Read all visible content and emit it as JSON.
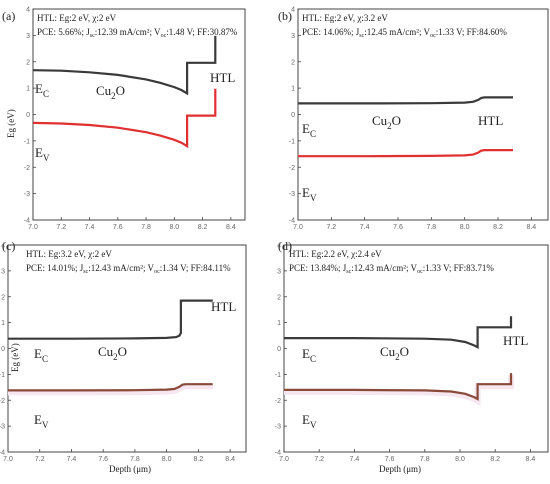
{
  "colors": {
    "ec_line": "#3a3a3a",
    "ev_line": "#e03030",
    "ev_line_alt": "#8a4a3a",
    "frame": "#444444",
    "ev_fill": "#f6e6ef"
  },
  "x_axis_title": "Depth (μm)",
  "chart_data": [
    {
      "type": "line",
      "panel_label": "(a)",
      "info_line1": "HTL: Eg:2 eV, χ:2 eV",
      "info_line2": "PCE: 5.66%; J",
      "info_line2_jsc": "sc",
      "info_line2_rest": ":12.39 mA/cm²; V",
      "info_line2_voc": "oc",
      "info_line2_tail": ":1.48 V; FF:30.87%",
      "ylabel": "Eg (eV)",
      "xlim": [
        7.0,
        8.5
      ],
      "ylim": [
        -4,
        4
      ],
      "x_ticks": [
        "7.0",
        "7.2",
        "7.4",
        "7.6",
        "7.8",
        "8.0",
        "8.2",
        "8.4"
      ],
      "y_ticks": [
        "-4",
        "-3",
        "-2",
        "-1",
        "0",
        "1",
        "2",
        "3",
        "4"
      ],
      "ec_label": "E",
      "ec_sub": "C",
      "ev_label": "E",
      "ev_sub": "V",
      "cu2o_label": "Cu",
      "cu2o_sub": "2",
      "cu2o_tail": "O",
      "htl_label": "HTL",
      "ev_style": "red",
      "series": [
        {
          "band": "Ec",
          "x": [
            7.0,
            7.2,
            7.4,
            7.6,
            7.8,
            7.9,
            8.0,
            8.05,
            8.09,
            8.09,
            8.29,
            8.29
          ],
          "y": [
            1.68,
            1.66,
            1.6,
            1.5,
            1.33,
            1.2,
            1.04,
            0.93,
            0.8,
            1.96,
            1.96,
            2.98
          ]
        },
        {
          "band": "Ev",
          "x": [
            7.0,
            7.2,
            7.4,
            7.6,
            7.8,
            7.9,
            8.0,
            8.05,
            8.09,
            8.09,
            8.29,
            8.29
          ],
          "y": [
            -0.32,
            -0.34,
            -0.4,
            -0.5,
            -0.67,
            -0.8,
            -0.96,
            -1.07,
            -1.2,
            -0.04,
            -0.04,
            0.98
          ]
        }
      ]
    },
    {
      "type": "line",
      "panel_label": "(b)",
      "info_line1": "HTL: Eg:2 eV, χ:3.2 eV",
      "info_line2": "PCE: 14.06%; J",
      "info_line2_jsc": "sc",
      "info_line2_rest": ":12.45 mA/cm²; V",
      "info_line2_voc": "oc",
      "info_line2_tail": ":1.33 V; FF:84.60%",
      "ylabel": "",
      "xlim": [
        7.0,
        8.5
      ],
      "ylim": [
        -4,
        4
      ],
      "x_ticks": [
        "7.0",
        "7.2",
        "7.4",
        "7.6",
        "7.8",
        "8.0",
        "8.2",
        "8.4"
      ],
      "y_ticks": [
        "-4",
        "-3",
        "-2",
        "-1",
        "0",
        "1",
        "2",
        "3",
        "4"
      ],
      "ec_label": "E",
      "ec_sub": "C",
      "ev_label": "E",
      "ev_sub": "V",
      "cu2o_label": "Cu",
      "cu2o_sub": "2",
      "cu2o_tail": "O",
      "htl_label": "HTL",
      "ev_style": "red",
      "series": [
        {
          "band": "Ec",
          "x": [
            7.0,
            7.4,
            7.8,
            8.0,
            8.05,
            8.08,
            8.1,
            8.12,
            8.29
          ],
          "y": [
            0.42,
            0.42,
            0.43,
            0.45,
            0.48,
            0.55,
            0.63,
            0.65,
            0.65
          ]
        },
        {
          "band": "Ev",
          "x": [
            7.0,
            7.4,
            7.8,
            8.0,
            8.05,
            8.08,
            8.1,
            8.12,
            8.29
          ],
          "y": [
            -1.58,
            -1.58,
            -1.57,
            -1.55,
            -1.52,
            -1.45,
            -1.37,
            -1.35,
            -1.35
          ]
        }
      ]
    },
    {
      "type": "line",
      "panel_label": "(c)",
      "info_line1": "HTL: Eg:3.2 eV, χ:2 eV",
      "info_line2": "PCE: 14.01%; J",
      "info_line2_jsc": "sc",
      "info_line2_rest": ":12.43 mA/cm²; V",
      "info_line2_voc": "oc",
      "info_line2_tail": ":1.34 V; FF:84.11%",
      "ylabel": "Eg (eV)",
      "xlim": [
        7.0,
        8.5
      ],
      "ylim": [
        -4,
        4
      ],
      "x_ticks": [
        "7.0",
        "7.2",
        "7.4",
        "7.6",
        "7.8",
        "8.0",
        "8.2",
        "8.4"
      ],
      "y_ticks": [
        "-4",
        "-3",
        "-2",
        "-1",
        "0",
        "1",
        "2",
        "3",
        "4"
      ],
      "ec_label": "E",
      "ec_sub": "C",
      "ev_label": "E",
      "ev_sub": "V",
      "cu2o_label": "Cu",
      "cu2o_sub": "2",
      "cu2o_tail": "O",
      "htl_label": "HTL",
      "ev_style": "brown",
      "series": [
        {
          "band": "Ec",
          "x": [
            7.0,
            7.4,
            7.8,
            8.0,
            8.06,
            8.08,
            8.09,
            8.09,
            8.29
          ],
          "y": [
            0.38,
            0.38,
            0.39,
            0.41,
            0.44,
            0.5,
            0.6,
            1.85,
            1.85
          ]
        },
        {
          "band": "Ev",
          "x": [
            7.0,
            7.4,
            7.8,
            8.0,
            8.05,
            8.08,
            8.1,
            8.12,
            8.29
          ],
          "y": [
            -1.62,
            -1.62,
            -1.61,
            -1.59,
            -1.56,
            -1.48,
            -1.4,
            -1.38,
            -1.38
          ]
        }
      ]
    },
    {
      "type": "line",
      "panel_label": "(d)",
      "info_line1": "HTL: Eg:2.2 eV, χ:2.4 eV",
      "info_line2": "PCE: 13.84%; J",
      "info_line2_jsc": "sc",
      "info_line2_rest": ":12.43 mA/cm²; V",
      "info_line2_voc": "oc",
      "info_line2_tail": ":1.33 V; FF:83.71%",
      "ylabel": "",
      "xlim": [
        7.0,
        8.5
      ],
      "ylim": [
        -4,
        4
      ],
      "x_ticks": [
        "7.0",
        "7.2",
        "7.4",
        "7.6",
        "7.8",
        "8.0",
        "8.2",
        "8.4"
      ],
      "y_ticks": [
        "-4",
        "-3",
        "-2",
        "-1",
        "0",
        "1",
        "2",
        "3",
        "4"
      ],
      "ec_label": "E",
      "ec_sub": "C",
      "ev_label": "E",
      "ev_sub": "V",
      "cu2o_label": "Cu",
      "cu2o_sub": "2",
      "cu2o_tail": "O",
      "htl_label": "HTL",
      "ev_style": "brown",
      "series": [
        {
          "band": "Ec",
          "x": [
            7.0,
            7.4,
            7.8,
            7.95,
            8.03,
            8.08,
            8.1,
            8.1,
            8.29,
            8.29
          ],
          "y": [
            0.4,
            0.4,
            0.38,
            0.34,
            0.25,
            0.12,
            0.05,
            0.82,
            0.82,
            1.25
          ]
        },
        {
          "band": "Ev",
          "x": [
            7.0,
            7.4,
            7.8,
            7.95,
            8.03,
            8.08,
            8.1,
            8.1,
            8.29,
            8.29
          ],
          "y": [
            -1.6,
            -1.6,
            -1.62,
            -1.66,
            -1.75,
            -1.88,
            -1.95,
            -1.38,
            -1.38,
            -0.95
          ]
        }
      ]
    }
  ]
}
